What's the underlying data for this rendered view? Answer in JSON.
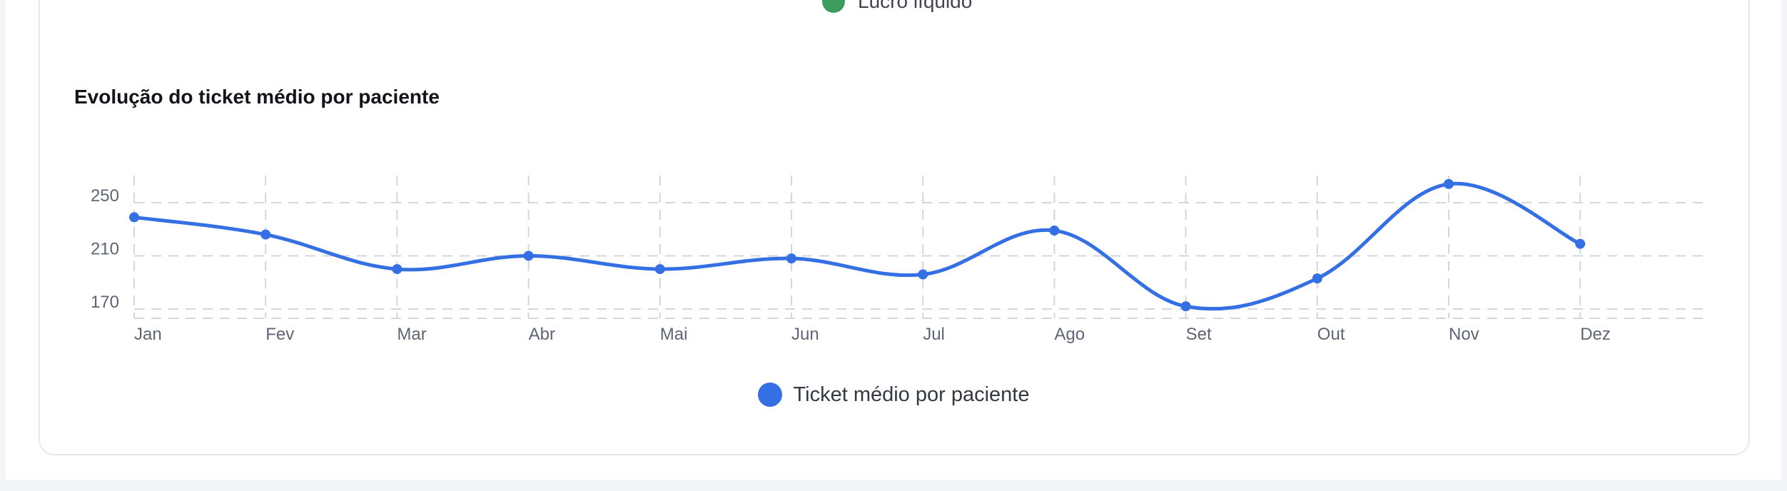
{
  "previous_chart": {
    "legend_label": "Lucro líquido",
    "legend_color": "#3e9b5e"
  },
  "chart": {
    "title": "Evolução do ticket médio por paciente"
  },
  "chart_data": {
    "type": "line",
    "title": "Evolução do ticket médio por paciente",
    "xlabel": "",
    "ylabel": "",
    "categories": [
      "Jan",
      "Fev",
      "Mar",
      "Abr",
      "Mai",
      "Jun",
      "Jul",
      "Ago",
      "Set",
      "Out",
      "Nov",
      "Dez"
    ],
    "yticks": [
      170,
      210,
      250
    ],
    "ylim": [
      163,
      265
    ],
    "grid": true,
    "legend_position": "bottom-center",
    "series": [
      {
        "name": "Ticket médio por paciente",
        "color": "#3470e4",
        "values": [
          239,
          226,
          200,
          210,
          200,
          208,
          196,
          229,
          172,
          193,
          264,
          219
        ]
      }
    ]
  }
}
